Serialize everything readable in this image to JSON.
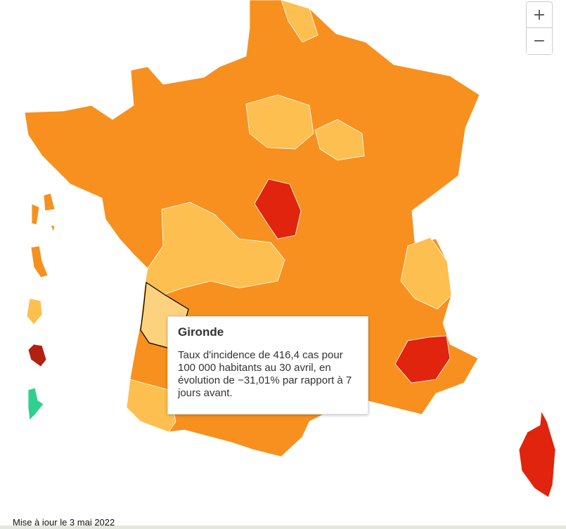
{
  "zoom_controls": {
    "zoom_in": "+",
    "zoom_out": "−"
  },
  "tooltip": {
    "title": "Gironde",
    "text": "Taux d'incidence de 416,4 cas pour 100 000 habitants au 30 avril, en évolution de −31,01% par rapport à 7 jours avant."
  },
  "footer": {
    "update": "Mise à jour le 3 mai 2022"
  }
}
